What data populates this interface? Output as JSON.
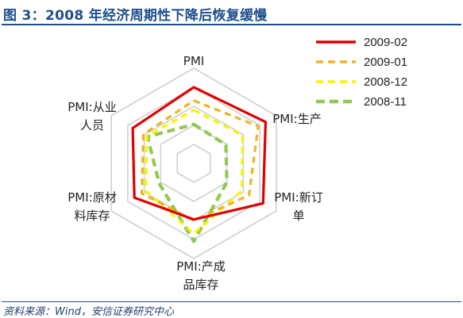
{
  "figure_title": "图 3：2008 年经济周期性下降后恢复缓慢",
  "source_note": "资料来源：Wind，安信证券研究中心",
  "chart_data": {
    "type": "radar",
    "axes": [
      {
        "label_lines": [
          "PMI"
        ]
      },
      {
        "label_lines": [
          "PMI:生产"
        ]
      },
      {
        "label_lines": [
          "PMI:新订",
          "单"
        ]
      },
      {
        "label_lines": [
          "PMI:产成",
          "品库存"
        ]
      },
      {
        "label_lines": [
          "PMI:原材",
          "料库存"
        ]
      },
      {
        "label_lines": [
          "PMI:从业",
          "人员"
        ]
      }
    ],
    "rlim": [
      0,
      1
    ],
    "rings": 5,
    "grid": true,
    "legend": "top-right",
    "series": [
      {
        "name": "2009-02",
        "color": "#e00000",
        "dash": "solid",
        "values": [
          0.8,
          0.87,
          0.84,
          0.59,
          0.72,
          0.74
        ]
      },
      {
        "name": "2009-01",
        "color": "#f0b323",
        "dash": "dashed",
        "values": [
          0.66,
          0.78,
          0.67,
          0.6,
          0.63,
          0.61
        ]
      },
      {
        "name": "2008-12",
        "color": "#f6f600",
        "dash": "dashed",
        "values": [
          0.56,
          0.59,
          0.58,
          0.74,
          0.58,
          0.57
        ]
      },
      {
        "name": "2008-11",
        "color": "#92c853",
        "dash": "dashed",
        "values": [
          0.41,
          0.39,
          0.4,
          0.82,
          0.42,
          0.56
        ]
      }
    ]
  }
}
